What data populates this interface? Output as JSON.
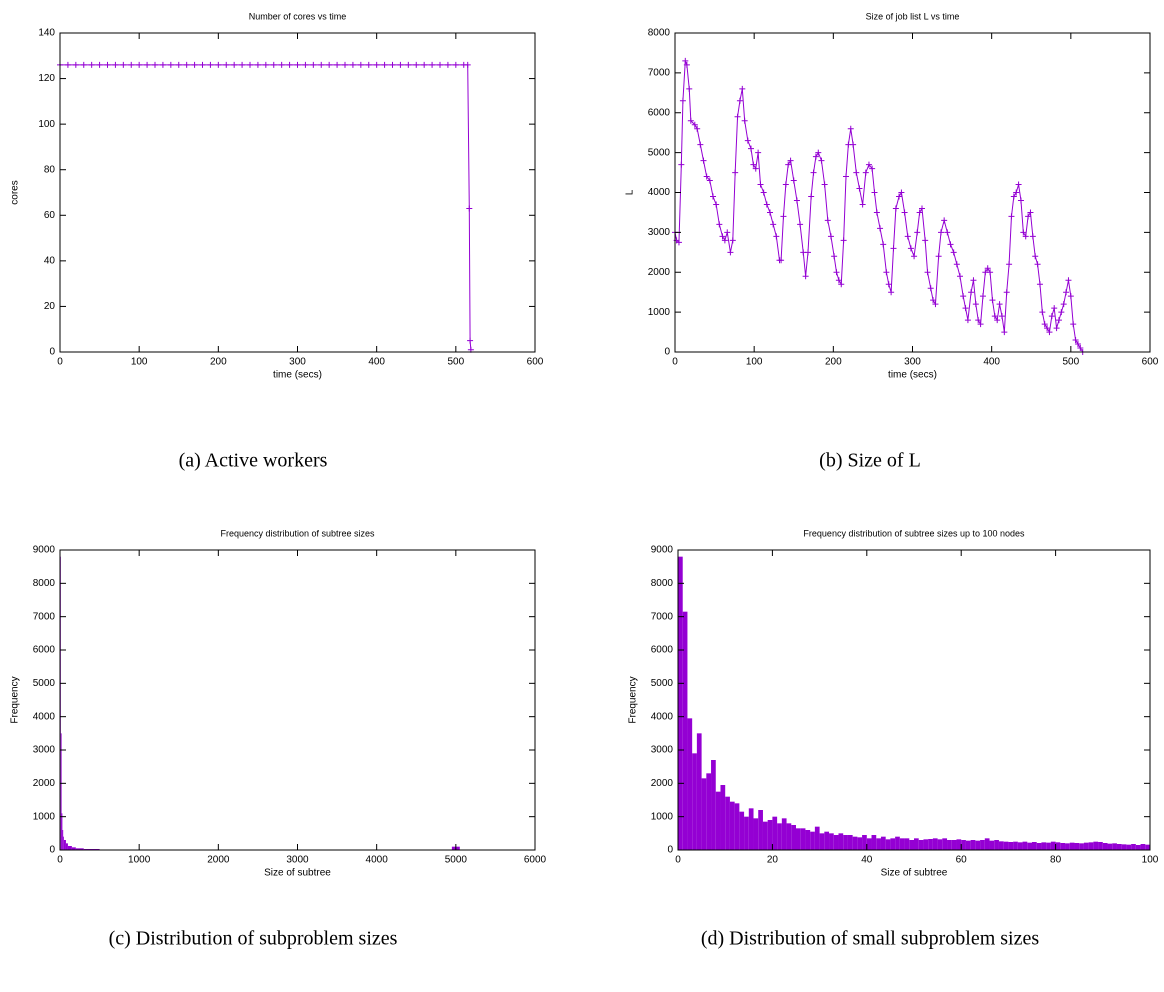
{
  "chart_data": [
    {
      "type": "line",
      "title": "Number of cores vs time",
      "xlabel": "time (secs)",
      "ylabel": "cores",
      "caption": "(a) Active workers",
      "color": "#9400d3",
      "x": [
        0,
        10,
        20,
        30,
        40,
        50,
        60,
        70,
        80,
        90,
        100,
        110,
        120,
        130,
        140,
        150,
        160,
        170,
        180,
        190,
        200,
        210,
        220,
        230,
        240,
        250,
        260,
        270,
        280,
        290,
        300,
        310,
        320,
        330,
        340,
        350,
        360,
        370,
        380,
        390,
        400,
        410,
        420,
        430,
        440,
        450,
        460,
        470,
        480,
        490,
        500,
        510,
        515,
        517,
        518,
        519
      ],
      "values": [
        126,
        126,
        126,
        126,
        126,
        126,
        126,
        126,
        126,
        126,
        126,
        126,
        126,
        126,
        126,
        126,
        126,
        126,
        126,
        126,
        126,
        126,
        126,
        126,
        126,
        126,
        126,
        126,
        126,
        126,
        126,
        126,
        126,
        126,
        126,
        126,
        126,
        126,
        126,
        126,
        126,
        126,
        126,
        126,
        126,
        126,
        126,
        126,
        126,
        126,
        126,
        126,
        126,
        63,
        5,
        1
      ],
      "xlim": [
        0,
        600
      ],
      "ylim": [
        0,
        140
      ],
      "xticks": [
        0,
        100,
        200,
        300,
        400,
        500,
        600
      ],
      "yticks": [
        0,
        20,
        40,
        60,
        80,
        100,
        120,
        140
      ]
    },
    {
      "type": "line",
      "title": "Size of job list L vs time",
      "xlabel": "time (secs)",
      "ylabel": "L",
      "caption": "(b) Size of L",
      "color": "#9400d3",
      "x": [
        0,
        2,
        5,
        8,
        10,
        13,
        15,
        18,
        20,
        25,
        28,
        32,
        36,
        40,
        44,
        48,
        52,
        56,
        60,
        63,
        66,
        70,
        73,
        76,
        79,
        82,
        85,
        88,
        92,
        96,
        99,
        102,
        105,
        108,
        112,
        116,
        120,
        124,
        128,
        132,
        134,
        137,
        140,
        143,
        146,
        150,
        154,
        158,
        162,
        165,
        168,
        172,
        175,
        178,
        181,
        185,
        189,
        193,
        197,
        201,
        204,
        207,
        210,
        213,
        216,
        219,
        222,
        225,
        229,
        233,
        237,
        241,
        245,
        249,
        252,
        255,
        259,
        263,
        267,
        270,
        273,
        276,
        279,
        283,
        286,
        290,
        294,
        298,
        302,
        306,
        309,
        312,
        316,
        319,
        323,
        326,
        329,
        333,
        336,
        340,
        344,
        348,
        352,
        356,
        360,
        364,
        367,
        370,
        374,
        377,
        380,
        383,
        386,
        389,
        392,
        395,
        398,
        401,
        404,
        407,
        410,
        413,
        416,
        419,
        422,
        425,
        428,
        431,
        434,
        437,
        440,
        443,
        446,
        449,
        452,
        455,
        458,
        461,
        464,
        467,
        470,
        473,
        476,
        479,
        482,
        485,
        488,
        491,
        494,
        497,
        500,
        503,
        506,
        509,
        512,
        515
      ],
      "values": [
        3000,
        2800,
        2750,
        4700,
        6300,
        7300,
        7200,
        6600,
        5800,
        5700,
        5600,
        5200,
        4800,
        4400,
        4300,
        3900,
        3700,
        3200,
        2900,
        2800,
        3000,
        2500,
        2800,
        4500,
        5900,
        6300,
        6600,
        5800,
        5300,
        5100,
        4700,
        4600,
        5000,
        4200,
        4000,
        3700,
        3500,
        3200,
        2900,
        2300,
        2300,
        3400,
        4200,
        4700,
        4800,
        4300,
        3800,
        3200,
        2500,
        1900,
        2500,
        3900,
        4500,
        4900,
        5000,
        4800,
        4200,
        3300,
        2900,
        2400,
        2000,
        1800,
        1700,
        2800,
        4400,
        5200,
        5600,
        5200,
        4500,
        4100,
        3700,
        4500,
        4700,
        4600,
        4000,
        3500,
        3100,
        2700,
        2000,
        1700,
        1500,
        2600,
        3600,
        3900,
        4000,
        3500,
        2900,
        2600,
        2400,
        3000,
        3500,
        3600,
        2800,
        2000,
        1600,
        1300,
        1200,
        2400,
        3000,
        3300,
        3000,
        2700,
        2500,
        2200,
        1900,
        1400,
        1100,
        800,
        1500,
        1800,
        1200,
        800,
        700,
        1400,
        2000,
        2100,
        2000,
        1300,
        900,
        800,
        1200,
        900,
        500,
        1500,
        2200,
        3400,
        3900,
        4000,
        4200,
        3800,
        3000,
        2900,
        3400,
        3500,
        2900,
        2400,
        2200,
        1700,
        1000,
        700,
        600,
        500,
        900,
        1100,
        600,
        800,
        1000,
        1200,
        1500,
        1800,
        1400,
        700,
        300,
        200,
        100,
        0
      ],
      "xlim": [
        0,
        600
      ],
      "ylim": [
        0,
        8000
      ],
      "xticks": [
        0,
        100,
        200,
        300,
        400,
        500,
        600
      ],
      "yticks": [
        0,
        1000,
        2000,
        3000,
        4000,
        5000,
        6000,
        7000,
        8000
      ]
    },
    {
      "type": "histogram",
      "title": "Frequency distribution of subtree sizes",
      "xlabel": "Size of subtree",
      "ylabel": "Frequency",
      "caption": "(c) Distribution of subproblem sizes",
      "color": "#9400d3",
      "bins": [
        0,
        10,
        20,
        30,
        40,
        50,
        75,
        100,
        150,
        200,
        300,
        500,
        900,
        4950,
        5050
      ],
      "values": [
        8800,
        3500,
        1100,
        600,
        400,
        300,
        200,
        120,
        80,
        50,
        30,
        15,
        0,
        100
      ],
      "xlim": [
        0,
        6000
      ],
      "ylim": [
        0,
        9000
      ],
      "xticks": [
        0,
        1000,
        2000,
        3000,
        4000,
        5000,
        6000
      ],
      "yticks": [
        0,
        1000,
        2000,
        3000,
        4000,
        5000,
        6000,
        7000,
        8000,
        9000
      ]
    },
    {
      "type": "histogram",
      "title": "Frequency distribution of subtree sizes up to 100 nodes",
      "xlabel": "Size of subtree",
      "ylabel": "Frequency",
      "caption": "(d) Distribution of small subproblem sizes",
      "color": "#9400d3",
      "bins": [
        0,
        1,
        2,
        3,
        4,
        5,
        6,
        7,
        8,
        9,
        10,
        11,
        12,
        13,
        14,
        15,
        16,
        17,
        18,
        19,
        20,
        21,
        22,
        23,
        24,
        25,
        26,
        27,
        28,
        29,
        30,
        31,
        32,
        33,
        34,
        35,
        36,
        37,
        38,
        39,
        40,
        41,
        42,
        43,
        44,
        45,
        46,
        47,
        48,
        49,
        50,
        51,
        52,
        53,
        54,
        55,
        56,
        57,
        58,
        59,
        60,
        61,
        62,
        63,
        64,
        65,
        66,
        67,
        68,
        69,
        70,
        71,
        72,
        73,
        74,
        75,
        76,
        77,
        78,
        79,
        80,
        81,
        82,
        83,
        84,
        85,
        86,
        87,
        88,
        89,
        90,
        91,
        92,
        93,
        94,
        95,
        96,
        97,
        98,
        99,
        100
      ],
      "values": [
        8800,
        7150,
        3950,
        2900,
        3500,
        2150,
        2300,
        2700,
        1750,
        1950,
        1600,
        1450,
        1400,
        1150,
        1000,
        1250,
        950,
        1200,
        850,
        900,
        1000,
        800,
        950,
        800,
        750,
        650,
        650,
        600,
        550,
        700,
        500,
        550,
        500,
        450,
        500,
        450,
        450,
        400,
        380,
        450,
        350,
        450,
        350,
        400,
        320,
        350,
        400,
        350,
        350,
        300,
        350,
        300,
        320,
        330,
        350,
        320,
        350,
        300,
        300,
        320,
        300,
        280,
        300,
        280,
        300,
        350,
        280,
        300,
        260,
        250,
        240,
        250,
        230,
        250,
        220,
        240,
        210,
        230,
        220,
        250,
        230,
        210,
        200,
        220,
        210,
        200,
        220,
        230,
        250,
        240,
        210,
        190,
        200,
        180,
        170,
        160,
        180,
        150,
        180,
        160
      ],
      "xlim": [
        0,
        100
      ],
      "ylim": [
        0,
        9000
      ],
      "xticks": [
        0,
        20,
        40,
        60,
        80,
        100
      ],
      "yticks": [
        0,
        1000,
        2000,
        3000,
        4000,
        5000,
        6000,
        7000,
        8000,
        9000
      ]
    }
  ]
}
